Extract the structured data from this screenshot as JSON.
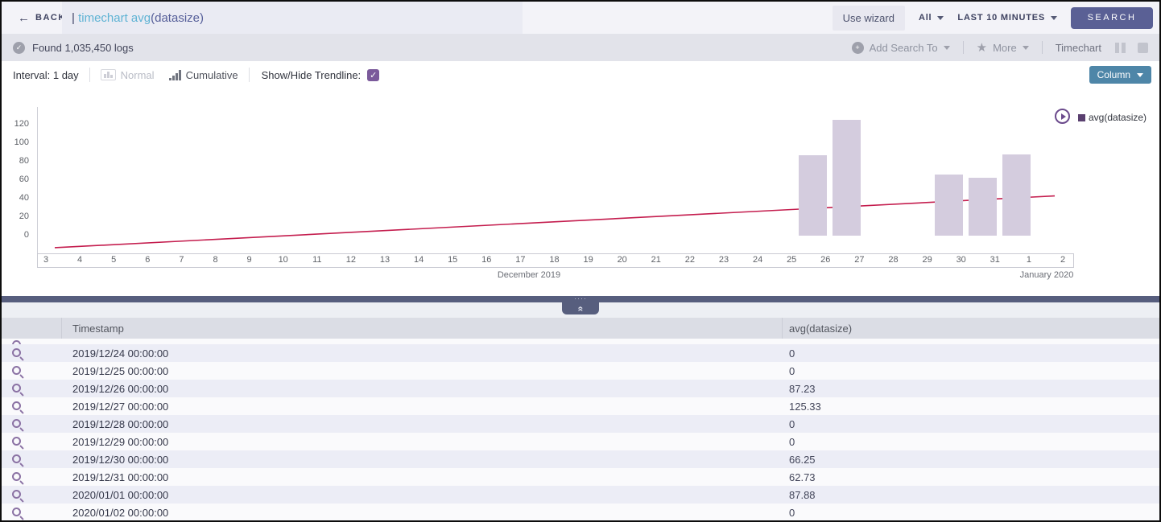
{
  "icons": {
    "back": "←",
    "check": "✓",
    "plus": "+",
    "star": "★",
    "collapse": "«",
    "checkmark": "✓"
  },
  "top_bar": {
    "back_label": "BACK",
    "query_pipe": "| ",
    "query_highlight": "timechart avg",
    "query_rest": "(datasize)",
    "use_wizard_label": "Use wizard",
    "scope_value": "All",
    "time_range_value": "LAST 10 MINUTES",
    "search_button_label": "SEARCH"
  },
  "status_bar": {
    "found_text": "Found 1,035,450 logs",
    "add_search_to_label": "Add Search To",
    "more_label": "More",
    "view_label": "Timechart"
  },
  "controls": {
    "interval_label": "Interval: 1 day",
    "normal_label": "Normal",
    "cumulative_label": "Cumulative",
    "trendline_label": "Show/Hide Trendline:",
    "trendline_checked": true,
    "chart_type_button_label": "Column"
  },
  "chart_data": {
    "type": "bar",
    "title": "",
    "xlabel": "",
    "ylabel": "",
    "grid": false,
    "legend_position": "top-right",
    "legend_label": "avg(datasize)",
    "legend_color": "#5a4070",
    "bar_color": "#d4ccde",
    "y_ticks": [
      120,
      100,
      80,
      60,
      40,
      20,
      0
    ],
    "ylim": [
      -20,
      135
    ],
    "x_ticks": [
      "3",
      "4",
      "5",
      "6",
      "7",
      "8",
      "9",
      "10",
      "11",
      "12",
      "13",
      "14",
      "15",
      "16",
      "17",
      "18",
      "19",
      "20",
      "21",
      "22",
      "23",
      "24",
      "25",
      "26",
      "27",
      "28",
      "29",
      "30",
      "31",
      "1",
      "2"
    ],
    "month_left": "December 2019",
    "month_right": "January 2020",
    "bars": [
      {
        "date": "2019/12/26",
        "from_tick": "25",
        "value": 87.23
      },
      {
        "date": "2019/12/27",
        "from_tick": "26",
        "value": 125.33
      },
      {
        "date": "2019/12/30",
        "from_tick": "29",
        "value": 66.25
      },
      {
        "date": "2019/12/31",
        "from_tick": "30",
        "value": 62.73
      },
      {
        "date": "2020/01/01",
        "from_tick": "31",
        "value": 87.88
      }
    ],
    "trendline": {
      "color": "#c41d4e",
      "start_value": -13,
      "end_value": 43
    }
  },
  "table": {
    "columns": [
      "",
      "Timestamp",
      "avg(datasize)"
    ],
    "rows": [
      {
        "timestamp": "2019/12/24 00:00:00",
        "value": "0"
      },
      {
        "timestamp": "2019/12/25 00:00:00",
        "value": "0"
      },
      {
        "timestamp": "2019/12/26 00:00:00",
        "value": "87.23"
      },
      {
        "timestamp": "2019/12/27 00:00:00",
        "value": "125.33"
      },
      {
        "timestamp": "2019/12/28 00:00:00",
        "value": "0"
      },
      {
        "timestamp": "2019/12/29 00:00:00",
        "value": "0"
      },
      {
        "timestamp": "2019/12/30 00:00:00",
        "value": "66.25"
      },
      {
        "timestamp": "2019/12/31 00:00:00",
        "value": "62.73"
      },
      {
        "timestamp": "2020/01/01 00:00:00",
        "value": "87.88"
      },
      {
        "timestamp": "2020/01/02 00:00:00",
        "value": "0"
      }
    ]
  }
}
